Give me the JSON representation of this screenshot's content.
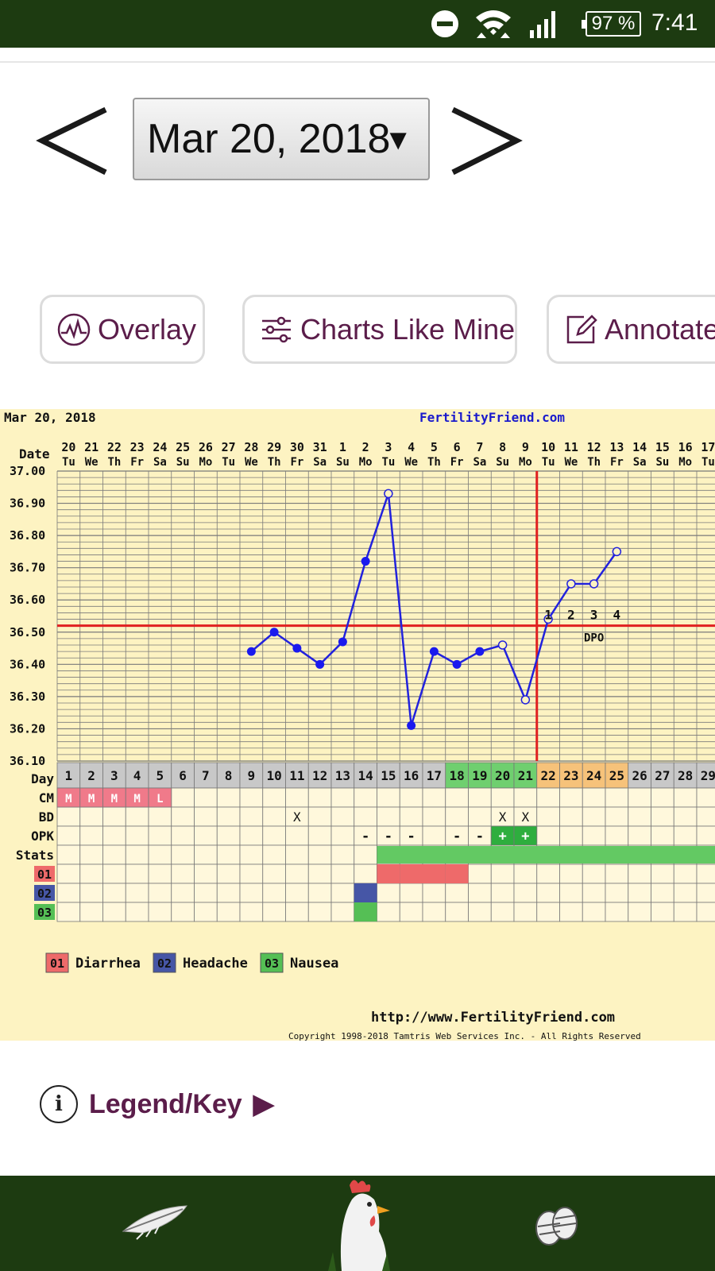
{
  "status_bar": {
    "battery": "97 %",
    "time": "7:41",
    "icons": [
      "do-not-disturb-icon",
      "wifi-icon",
      "signal-icon",
      "battery-icon"
    ]
  },
  "date_nav": {
    "selected_date": "Mar 20, 2018",
    "caret": "▼"
  },
  "buttons": {
    "overlay": "Overlay",
    "charts_like_mine": "Charts Like Mine",
    "annotate": "Annotate"
  },
  "chart_header": {
    "date_label": "Mar 20, 2018",
    "site": "FertilityFriend.com",
    "footer_url": "http://www.FertilityFriend.com",
    "copyright": "Copyright 1998-2018 Tamtris Web Services Inc. - All Rights Reserved"
  },
  "chart_data": {
    "type": "line",
    "row_labels": {
      "date": "Date",
      "day": "Day",
      "cm": "CM",
      "bd": "BD",
      "opk": "OPK",
      "stats": "Stats"
    },
    "dates": [
      "20",
      "21",
      "22",
      "23",
      "24",
      "25",
      "26",
      "27",
      "28",
      "29",
      "30",
      "31",
      "1",
      "2",
      "3",
      "4",
      "5",
      "6",
      "7",
      "8",
      "9",
      "10",
      "11",
      "12",
      "13",
      "14",
      "15",
      "16",
      "17"
    ],
    "weekdays": [
      "Tu",
      "We",
      "Th",
      "Fr",
      "Sa",
      "Su",
      "Mo",
      "Tu",
      "We",
      "Th",
      "Fr",
      "Sa",
      "Su",
      "Mo",
      "Tu",
      "We",
      "Th",
      "Fr",
      "Sa",
      "Su",
      "Mo",
      "Tu",
      "We",
      "Th",
      "Fr",
      "Sa",
      "Su",
      "Mo",
      "Tu"
    ],
    "cycle_days": [
      "1",
      "2",
      "3",
      "4",
      "5",
      "6",
      "7",
      "8",
      "9",
      "10",
      "11",
      "12",
      "13",
      "14",
      "15",
      "16",
      "17",
      "18",
      "19",
      "20",
      "21",
      "22",
      "23",
      "24",
      "25",
      "26",
      "27",
      "28",
      "29"
    ],
    "ylim": [
      36.1,
      37.0
    ],
    "y_ticks": [
      "37.00",
      "36.90",
      "36.80",
      "36.70",
      "36.60",
      "36.50",
      "36.40",
      "36.30",
      "36.20",
      "36.10"
    ],
    "temperatures": [
      {
        "day": 9,
        "temp": 36.44,
        "open": false
      },
      {
        "day": 10,
        "temp": 36.5,
        "open": false
      },
      {
        "day": 11,
        "temp": 36.45,
        "open": false
      },
      {
        "day": 12,
        "temp": 36.4,
        "open": false
      },
      {
        "day": 13,
        "temp": 36.47,
        "open": false
      },
      {
        "day": 14,
        "temp": 36.72,
        "open": false
      },
      {
        "day": 15,
        "temp": 36.93,
        "open": true
      },
      {
        "day": 16,
        "temp": 36.21,
        "open": false
      },
      {
        "day": 17,
        "temp": 36.44,
        "open": false
      },
      {
        "day": 18,
        "temp": 36.4,
        "open": false
      },
      {
        "day": 19,
        "temp": 36.44,
        "open": false
      },
      {
        "day": 20,
        "temp": 36.46,
        "open": true
      },
      {
        "day": 21,
        "temp": 36.29,
        "open": true
      },
      {
        "day": 22,
        "temp": 36.54,
        "open": true
      },
      {
        "day": 23,
        "temp": 36.65,
        "open": true
      },
      {
        "day": 24,
        "temp": 36.65,
        "open": true
      },
      {
        "day": 25,
        "temp": 36.75,
        "open": true
      }
    ],
    "coverline": 36.52,
    "ovulation_day": 21,
    "dpo_labels": [
      "1",
      "2",
      "3",
      "4"
    ],
    "dpo_start_day": 22,
    "dpo_text": "DPO",
    "green_day_range": [
      18,
      21
    ],
    "orange_day_range": [
      22,
      25
    ],
    "cm": [
      {
        "day": 1,
        "v": "M"
      },
      {
        "day": 2,
        "v": "M"
      },
      {
        "day": 3,
        "v": "M"
      },
      {
        "day": 4,
        "v": "M"
      },
      {
        "day": 5,
        "v": "L"
      }
    ],
    "bd": [
      {
        "day": 11,
        "v": "X"
      },
      {
        "day": 20,
        "v": "X"
      },
      {
        "day": 21,
        "v": "X"
      }
    ],
    "opk": [
      {
        "day": 14,
        "v": "-",
        "pos": false
      },
      {
        "day": 15,
        "v": "-",
        "pos": false
      },
      {
        "day": 16,
        "v": "-",
        "pos": false
      },
      {
        "day": 18,
        "v": "-",
        "pos": false
      },
      {
        "day": 19,
        "v": "-",
        "pos": false
      },
      {
        "day": 20,
        "v": "+",
        "pos": true
      },
      {
        "day": 21,
        "v": "+",
        "pos": true
      }
    ],
    "stats_start_day": 15,
    "symptoms": [
      {
        "code": "01",
        "name": "Diarrhea",
        "color": "#ee6a6a",
        "days": [
          15,
          16,
          17,
          18
        ]
      },
      {
        "code": "02",
        "name": "Headache",
        "color": "#4656a6",
        "days": [
          14
        ]
      },
      {
        "code": "03",
        "name": "Nausea",
        "color": "#55bf55",
        "days": [
          14
        ]
      }
    ]
  },
  "legend_key": {
    "info": "i",
    "label": "Legend/Key",
    "arrow": "▶"
  },
  "bottom_nav": {
    "items": [
      "feather-icon",
      "rooster-icon",
      "eggs-icon"
    ]
  }
}
